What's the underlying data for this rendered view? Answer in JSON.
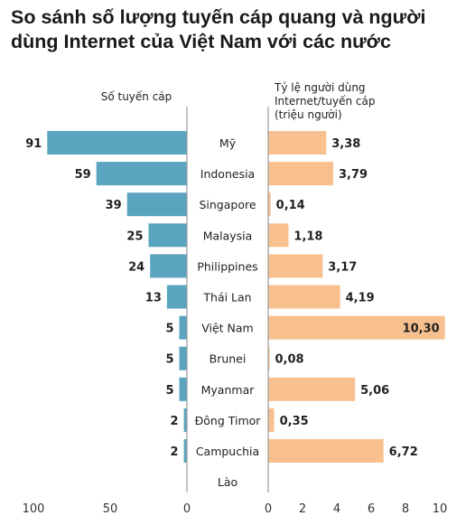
{
  "title": "So sánh số lượng tuyến cáp quang và người dùng Internet của Việt Nam với các nước",
  "chart_data": [
    {
      "type": "bar",
      "orientation": "horizontal",
      "direction": "leftward",
      "title": "Số tuyến cáp",
      "categories": [
        "Mỹ",
        "Indonesia",
        "Singapore",
        "Malaysia",
        "Philippines",
        "Thái Lan",
        "Việt Nam",
        "Brunei",
        "Myanmar",
        "Đông Timor",
        "Campuchia",
        "Lào"
      ],
      "values": [
        91,
        59,
        39,
        25,
        24,
        13,
        5,
        5,
        5,
        2,
        2,
        null
      ],
      "value_labels": [
        "91",
        "59",
        "39",
        "25",
        "24",
        "13",
        "5",
        "5",
        "5",
        "2",
        "2",
        ""
      ],
      "xlim": [
        0,
        100
      ],
      "xticks": [
        "100",
        "50",
        "0"
      ],
      "xtick_values": [
        100,
        50,
        0
      ],
      "color": "#5ba4c0"
    },
    {
      "type": "bar",
      "orientation": "horizontal",
      "direction": "rightward",
      "title_lines": [
        "Tỷ lệ người dùng",
        "Internet/tuyến cáp",
        "(triệu người)"
      ],
      "categories": [
        "Mỹ",
        "Indonesia",
        "Singapore",
        "Malaysia",
        "Philippines",
        "Thái Lan",
        "Việt Nam",
        "Brunei",
        "Myanmar",
        "Đông Timor",
        "Campuchia",
        "Lào"
      ],
      "values": [
        3.38,
        3.79,
        0.14,
        1.18,
        3.17,
        4.19,
        10.3,
        0.08,
        5.06,
        0.35,
        6.72,
        null
      ],
      "value_labels": [
        "3,38",
        "3,79",
        "0,14",
        "1,18",
        "3,17",
        "4,19",
        "10,30",
        "0,08",
        "5,06",
        "0,35",
        "6,72",
        ""
      ],
      "xlim": [
        0,
        10.8
      ],
      "xticks": [
        "0",
        "2",
        "4",
        "6",
        "8",
        "10"
      ],
      "xtick_values": [
        0,
        2,
        4,
        6,
        8,
        10
      ],
      "color": "#f7c08e"
    }
  ]
}
